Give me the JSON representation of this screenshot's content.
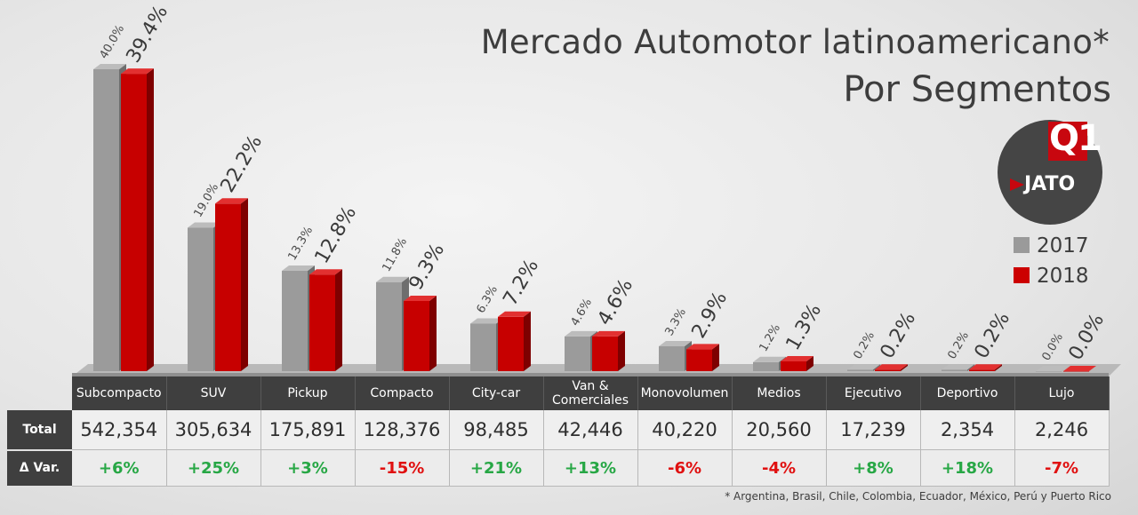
{
  "title": "Mercado Automotor latinoamericano*",
  "subtitle": "Por Segmentos",
  "logo": {
    "badge_text": "Q1",
    "brand_text": "JATO"
  },
  "legend": [
    {
      "label": "2017",
      "color": "#9a9a9a"
    },
    {
      "label": "2018",
      "color": "#cc0000"
    }
  ],
  "chart_data": {
    "type": "bar",
    "categories": [
      "Subcompacto",
      "SUV",
      "Pickup",
      "Compacto",
      "City-car",
      "Van & Comerciales",
      "Monovolumen",
      "Medios",
      "Ejecutivo",
      "Deportivo",
      "Lujo"
    ],
    "series": [
      {
        "name": "2017",
        "color": "#9a9a9a",
        "values": [
          40.0,
          19.0,
          13.3,
          11.8,
          6.3,
          4.6,
          3.3,
          1.2,
          0.2,
          0.2,
          0.0
        ],
        "labels": [
          "40.0%",
          "19.0%",
          "13.3%",
          "11.8%",
          "6.3%",
          "4.6%",
          "3.3%",
          "1.2%",
          "0.2%",
          "0.2%",
          "0.0%"
        ]
      },
      {
        "name": "2018",
        "color": "#cc0000",
        "values": [
          39.4,
          22.2,
          12.8,
          9.3,
          7.2,
          4.6,
          2.9,
          1.3,
          0.2,
          0.2,
          0.0
        ],
        "labels": [
          "39.4%",
          "22.2%",
          "12.8%",
          "9.3%",
          "7.2%",
          "4.6%",
          "2.9%",
          "1.3%",
          "0.2%",
          "0.2%",
          "0.0%"
        ]
      }
    ],
    "ylim": [
      0,
      40
    ],
    "legend_position": "right"
  },
  "table": {
    "headers": [
      "Subcompacto",
      "SUV",
      "Pickup",
      "Compacto",
      "City-car",
      "Van &\nComerciales",
      "Monovolumen",
      "Medios",
      "Ejecutivo",
      "Deportivo",
      "Lujo"
    ],
    "rows": [
      {
        "label": "Total",
        "values": [
          "542,354",
          "305,634",
          "175,891",
          "128,376",
          "98,485",
          "42,446",
          "40,220",
          "20,560",
          "17,239",
          "2,354",
          "2,246"
        ]
      },
      {
        "label": "Δ Var.",
        "values": [
          "+6%",
          "+25%",
          "+3%",
          "-15%",
          "+21%",
          "+13%",
          "-6%",
          "-4%",
          "+8%",
          "+18%",
          "-7%"
        ]
      }
    ]
  },
  "footnote": "* Argentina, Brasil, Chile, Colombia, Ecuador, México, Perú y Puerto Rico"
}
